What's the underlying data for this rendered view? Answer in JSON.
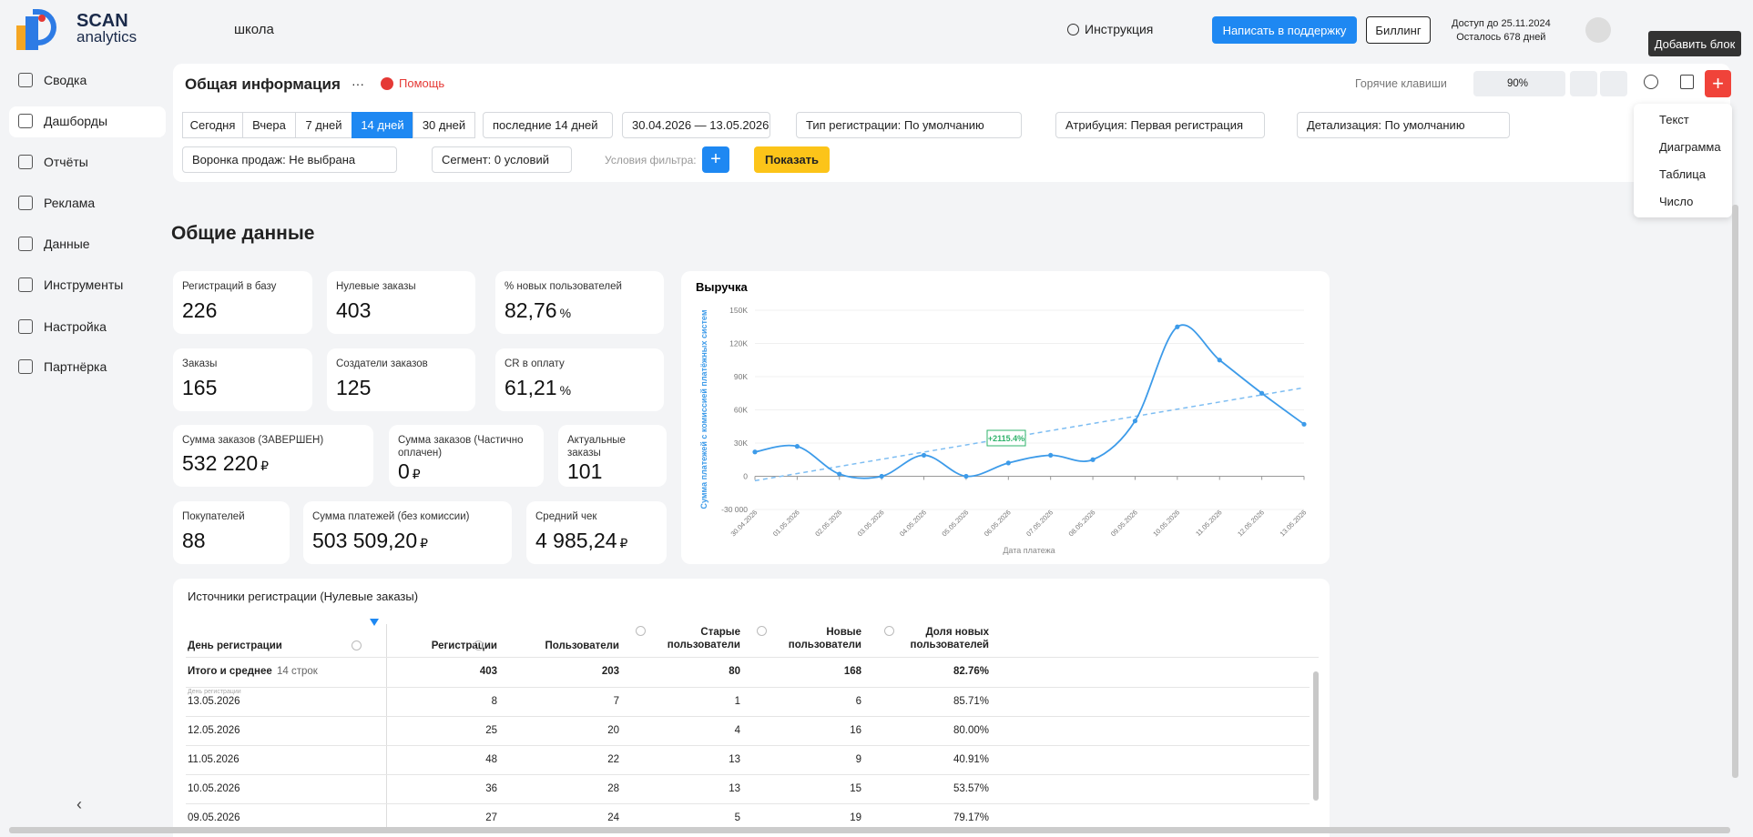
{
  "header": {
    "logo_top": "SCAN",
    "logo_bottom": "analytics",
    "project": "школа",
    "help": "Инструкция",
    "support": "Написать в поддержку",
    "billing": "Биллинг",
    "access": "Доступ до 25.11.2024",
    "days_left": "Осталось 678 дней",
    "tooltip": "Добавить блок"
  },
  "sidebar": {
    "items": [
      "Сводка",
      "Дашборды",
      "Отчёты",
      "Реклама",
      "Данные",
      "Инструменты",
      "Настройка",
      "Партнёрка"
    ],
    "active": 1
  },
  "add_menu": [
    "Текст",
    "Диаграмма",
    "Таблица",
    "Число"
  ],
  "toolbar": {
    "title": "Общая информация",
    "more": "···",
    "help": "Помощь",
    "hotkeys": "Горячие клавиши",
    "zoom": "90%"
  },
  "filters": {
    "periods": [
      "Сегодня",
      "Вчера",
      "7 дней",
      "14 дней",
      "30 дней"
    ],
    "active_period": 3,
    "range": "последние 14 дней",
    "dates": "30.04.2026  —  13.05.2026",
    "registration_type": "Тип регистрации: По умолчанию",
    "attribution": "Атрибуция: Первая регистрация",
    "detail": "Детализация:  По умолчанию",
    "funnel": "Воронка продаж: Не выбрана",
    "segment": "Сегмент: 0 условий",
    "conditions": "Условия фильтра:",
    "show": "Показать"
  },
  "section_title": "Общие данные",
  "kpis": [
    {
      "label": "Регистраций в базу",
      "value": "226"
    },
    {
      "label": "Нулевые заказы",
      "value": "403"
    },
    {
      "label": "% новых пользователей",
      "value": "82,76",
      "unit": "%"
    },
    {
      "label": "Заказы",
      "value": "165"
    },
    {
      "label": "Создатели заказов",
      "value": "125"
    },
    {
      "label": "CR в оплату",
      "value": "61,21",
      "unit": "%"
    },
    {
      "label": "Сумма заказов (ЗАВЕРШЕН)",
      "value": "532 220",
      "unit": "₽"
    },
    {
      "label": "Сумма заказов (Частично оплачен)",
      "value": "0",
      "unit": "₽"
    },
    {
      "label": "Актуальные заказы",
      "value": "101"
    },
    {
      "label": "Покупателей",
      "value": "88"
    },
    {
      "label": "Сумма платежей (без комиссии)",
      "value": "503 509,20",
      "unit": "₽"
    },
    {
      "label": "Средний чек",
      "value": "4 985,24",
      "unit": "₽"
    }
  ],
  "chart_data": {
    "type": "line",
    "title": "Выручка",
    "y_label": "Сумма платежей с комиссией платёжных систем",
    "x_label": "Дата платежа",
    "categories": [
      "30.04.2026",
      "01.05.2026",
      "02.05.2026",
      "03.05.2026",
      "04.05.2026",
      "05.05.2026",
      "06.05.2026",
      "07.05.2026",
      "08.05.2026",
      "09.05.2026",
      "10.05.2026",
      "11.05.2026",
      "12.05.2026",
      "13.05.2026"
    ],
    "series": [
      {
        "color": "#3d9be9",
        "values": [
          22000,
          27000,
          2000,
          0,
          19000,
          0,
          12000,
          19000,
          15000,
          50000,
          135000,
          105000,
          75000,
          47000
        ]
      }
    ],
    "trend_line": [
      -4000,
      80000
    ],
    "annotation": "+2115.4%",
    "ylim": [
      -30000,
      150000
    ],
    "yticks": [
      {
        "value": -30000,
        "label": "-30 000"
      },
      0,
      {
        "value": 30000,
        "label": "30K"
      },
      {
        "value": 60000,
        "label": "60K"
      },
      {
        "value": 90000,
        "label": "90K"
      },
      {
        "value": 120000,
        "label": "120K"
      },
      {
        "value": 150000,
        "label": "150K"
      }
    ],
    "grid": true
  },
  "table": {
    "title": "Источники регистрации (Нулевые заказы)",
    "columns": [
      "День регистрации",
      "Регистрации",
      "Пользователи",
      "Старые пользователи",
      "Новые пользователи",
      "Доля новых пользователей"
    ],
    "total": {
      "label": "Итого и среднее",
      "count": "14 строк",
      "values": [
        403,
        203,
        80,
        168,
        "82.76%"
      ]
    },
    "row_hint": "День регистрации",
    "rows": [
      [
        "13.05.2026",
        8,
        7,
        1,
        6,
        "85.71%"
      ],
      [
        "12.05.2026",
        25,
        20,
        4,
        16,
        "80.00%"
      ],
      [
        "11.05.2026",
        48,
        22,
        13,
        9,
        "40.91%"
      ],
      [
        "10.05.2026",
        36,
        28,
        13,
        15,
        "53.57%"
      ],
      [
        "09.05.2026",
        27,
        24,
        5,
        19,
        "79.17%"
      ]
    ]
  }
}
